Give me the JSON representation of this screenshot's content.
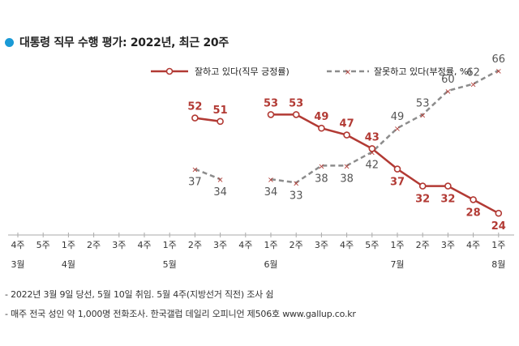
{
  "title": "대통령 직무 수행 평가: 2022년, 최근 20주",
  "colors": {
    "approve": "#b23a34",
    "disapprove": "#8c8c8c",
    "bullet": "#1a9ad6",
    "axis": "#aaaaaa"
  },
  "chart_data": {
    "type": "line",
    "categories": [
      "4주",
      "5주",
      "1주",
      "2주",
      "3주",
      "4주",
      "1주",
      "2주",
      "3주",
      "4주",
      "1주",
      "2주",
      "3주",
      "4주",
      "5주",
      "1주",
      "2주",
      "3주",
      "4주",
      "1주"
    ],
    "month_labels": [
      {
        "index": 0,
        "label": "3월"
      },
      {
        "index": 2,
        "label": "4월"
      },
      {
        "index": 6,
        "label": "5월"
      },
      {
        "index": 10,
        "label": "6월"
      },
      {
        "index": 15,
        "label": "7월"
      },
      {
        "index": 19,
        "label": "8월"
      }
    ],
    "series": [
      {
        "name": "잘하고 있다(직무 긍정률)",
        "key": "approve",
        "values": [
          null,
          null,
          null,
          null,
          null,
          null,
          null,
          52,
          51,
          null,
          53,
          53,
          49,
          47,
          43,
          37,
          32,
          32,
          28,
          24
        ]
      },
      {
        "name": "잘못하고 있다(부정률, %)",
        "key": "disapprove",
        "values": [
          null,
          null,
          null,
          null,
          null,
          null,
          null,
          37,
          34,
          null,
          34,
          33,
          38,
          38,
          42,
          49,
          53,
          60,
          62,
          66
        ]
      }
    ],
    "ylim": [
      20,
      70
    ],
    "legend_position": "top-right",
    "grid": false
  },
  "footnotes": [
    "- 2022년 3월 9일 당선, 5월 10일 취임. 5월 4주(지방선거 직전) 조사 쉼",
    "- 매주 전국 성인 약 1,000명 전화조사. 한국갤럽 데일리 오피니언 제506호 www.gallup.co.kr"
  ]
}
